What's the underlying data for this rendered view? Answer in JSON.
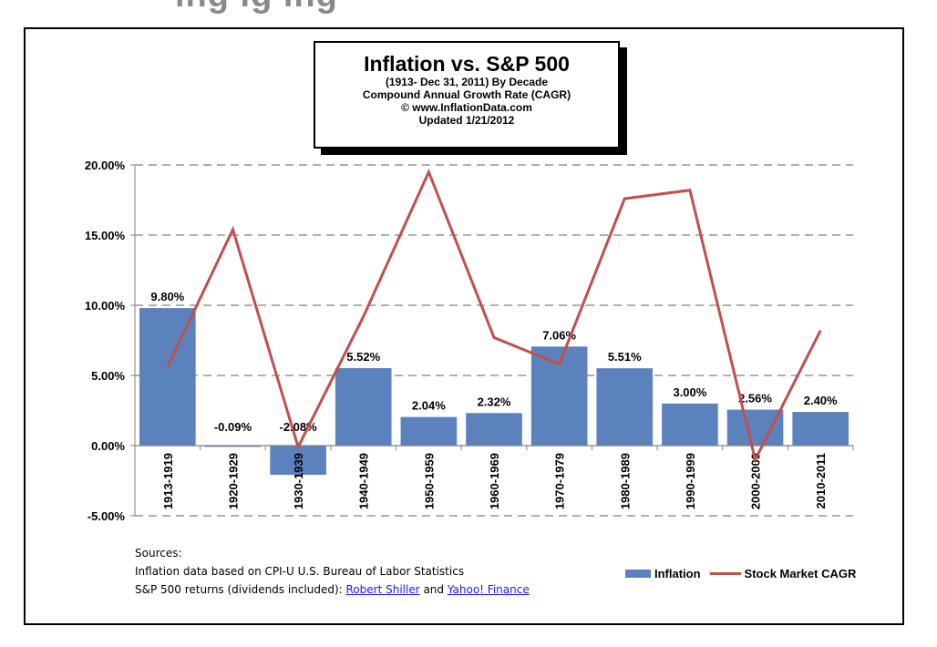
{
  "header_cut": "ing  ig  ing",
  "chart_data": {
    "type": "bar",
    "title": "Inflation  vs. S&P 500",
    "subtitle_lines": [
      "(1913- Dec 31, 2011) By Decade",
      "Compound Annual Growth Rate (CAGR)",
      "© www.InflationData.com",
      "Updated 1/21/2012"
    ],
    "categories": [
      "1913-1919",
      "1920-1929",
      "1930-1939",
      "1940-1949",
      "1950-1959",
      "1960-1969",
      "1970-1979",
      "1980-1989",
      "1990-1999",
      "2000-2009",
      "2010-2011"
    ],
    "series": [
      {
        "name": "Inflation",
        "type": "bar",
        "color": "#5b82bd",
        "values": [
          9.8,
          -0.09,
          -2.08,
          5.52,
          2.04,
          2.32,
          7.06,
          5.51,
          3.0,
          2.56,
          2.4
        ],
        "labels": [
          "9.80%",
          "-0.09%",
          "-2.08%",
          "5.52%",
          "2.04%",
          "2.32%",
          "7.06%",
          "5.51%",
          "3.00%",
          "2.56%",
          "2.40%"
        ]
      },
      {
        "name": "Stock Market CAGR",
        "type": "line",
        "color": "#c0504d",
        "values": [
          5.6,
          15.4,
          -0.1,
          9.2,
          19.5,
          7.7,
          5.8,
          17.6,
          18.2,
          -1.0,
          8.2
        ]
      }
    ],
    "ylim": [
      -5,
      20
    ],
    "yticks": [
      -5,
      0,
      5,
      10,
      15,
      20
    ],
    "ytick_labels": [
      "-5.00%",
      "0.00%",
      "5.00%",
      "10.00%",
      "15.00%",
      "20.00%"
    ],
    "grid": true,
    "legend": "bottom-right"
  },
  "sources": {
    "heading": "Sources:",
    "line1": "Inflation data based on CPI-U U.S. Bureau of Labor Statistics",
    "line2_prefix": "S&P 500 returns (dividends included): ",
    "link1": "Robert Shiller",
    "and": " and ",
    "link2": "Yahoo! Finance"
  },
  "legend": {
    "inflation": "Inflation",
    "stock": "Stock Market CAGR"
  }
}
